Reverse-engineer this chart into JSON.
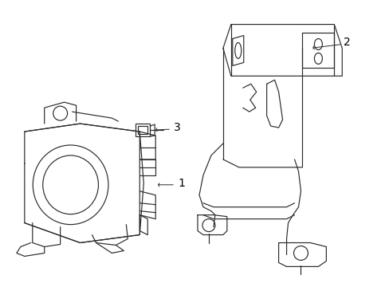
{
  "background_color": "#ffffff",
  "line_color": "#2a2a2a",
  "label_color": "#000000",
  "part_lw": 0.85,
  "arrow_lw": 0.7,
  "figsize": [
    4.89,
    3.6
  ],
  "dpi": 100
}
